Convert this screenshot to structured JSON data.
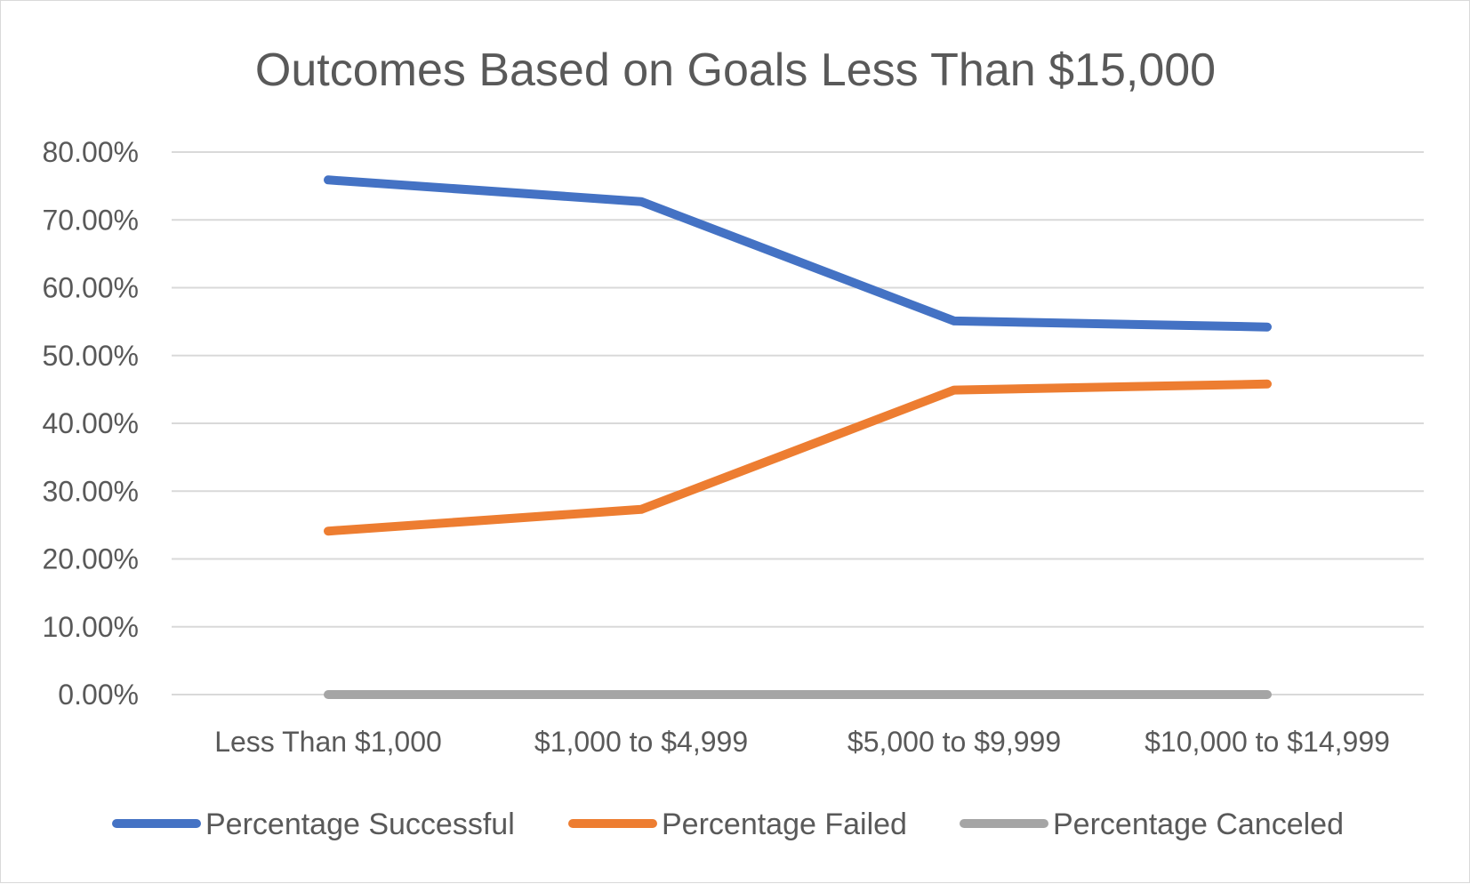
{
  "chart_data": {
    "type": "line",
    "title": "Outcomes Based on Goals Less Than $15,000",
    "categories": [
      "Less Than $1,000",
      "$1,000 to $4,999",
      "$5,000 to $9,999",
      "$10,000 to $14,999"
    ],
    "series": [
      {
        "name": "Percentage Successful",
        "color": "#4472c4",
        "values": [
          75.9,
          72.7,
          55.1,
          54.2
        ]
      },
      {
        "name": "Percentage Failed",
        "color": "#ed7d31",
        "values": [
          24.1,
          27.3,
          44.9,
          45.8
        ]
      },
      {
        "name": "Percentage Canceled",
        "color": "#a5a5a5",
        "values": [
          0.0,
          0.0,
          0.0,
          0.0
        ]
      }
    ],
    "y_ticks": [
      "0.00%",
      "10.00%",
      "20.00%",
      "30.00%",
      "40.00%",
      "50.00%",
      "60.00%",
      "70.00%",
      "80.00%"
    ],
    "ylim": [
      0,
      80
    ],
    "xlabel": "",
    "ylabel": "",
    "grid": true,
    "legend_position": "bottom"
  }
}
